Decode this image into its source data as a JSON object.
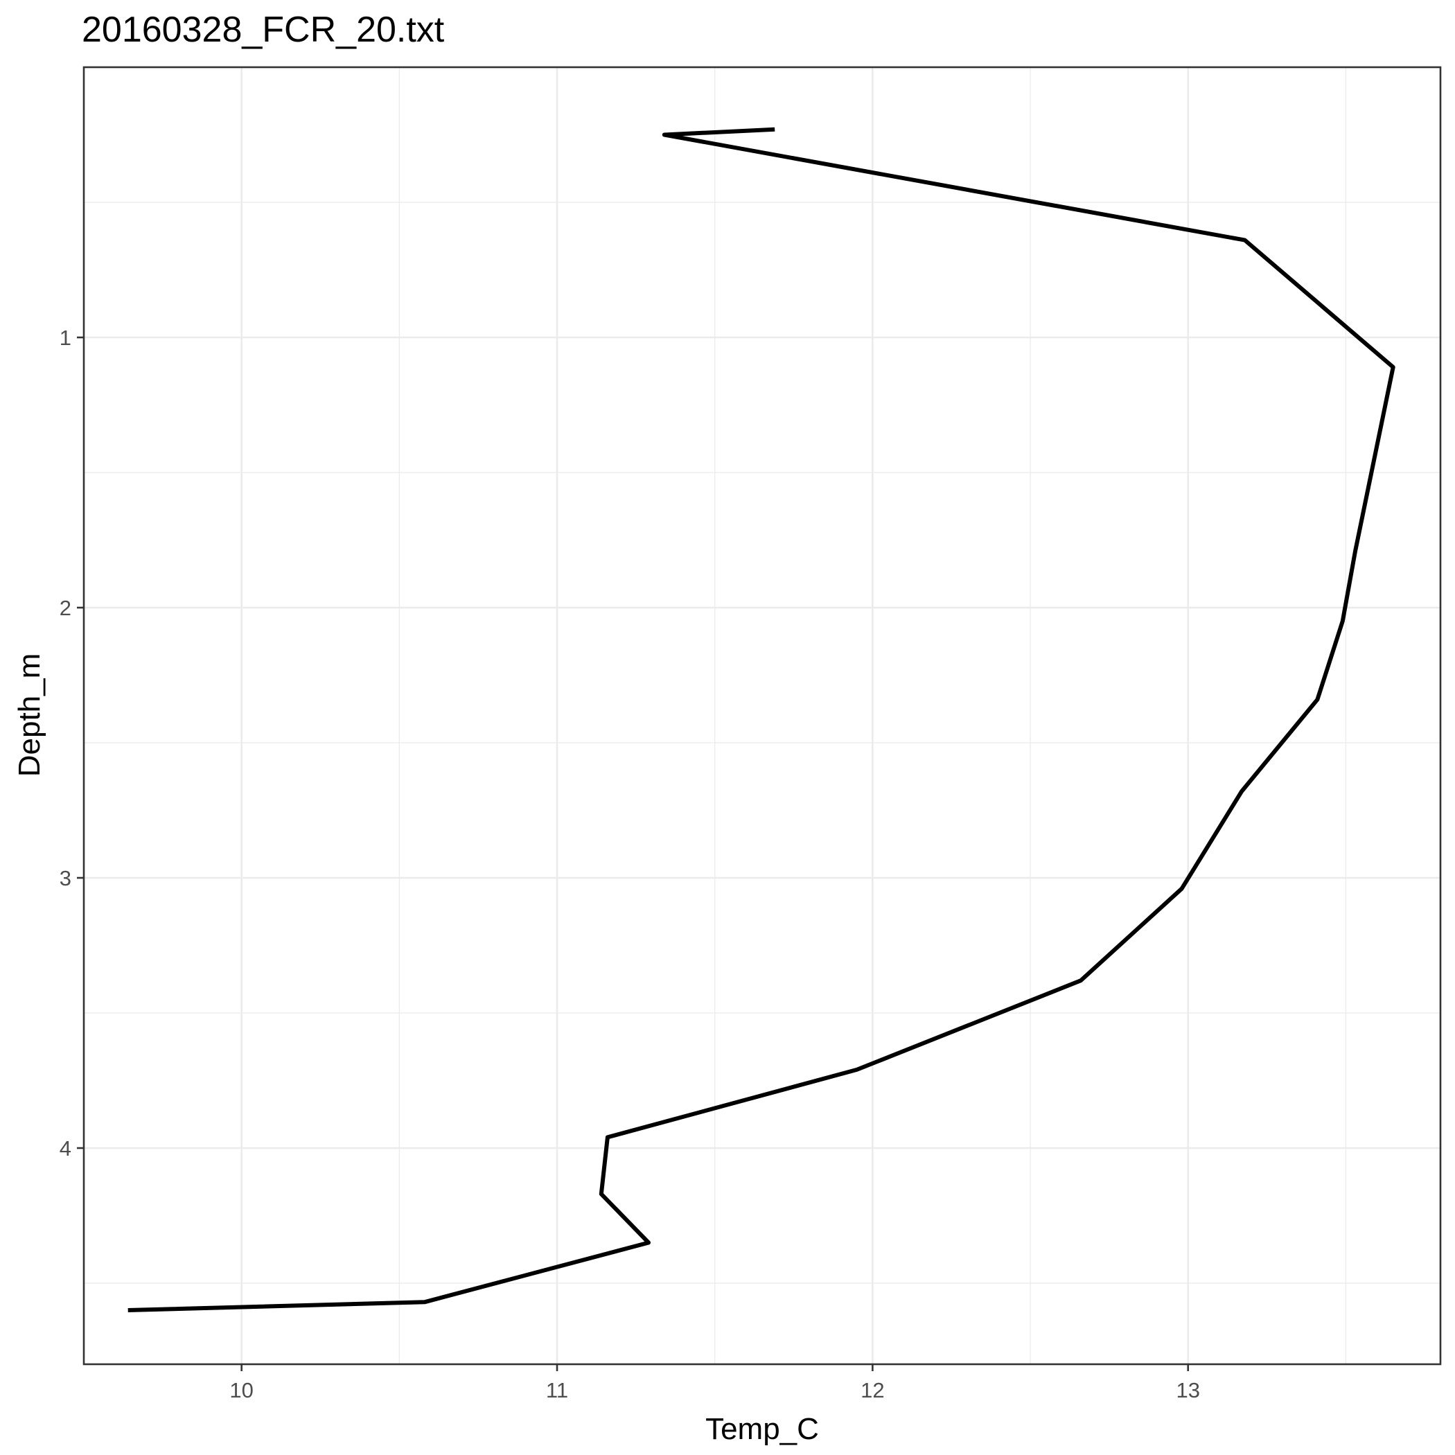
{
  "chart_data": {
    "type": "line",
    "title": "20160328_FCR_20.txt",
    "xlabel": "Temp_C",
    "ylabel": "Depth_m",
    "xlim": [
      9.5,
      13.8
    ],
    "ylim": [
      0.0,
      4.8
    ],
    "y_reversed": true,
    "grid": true,
    "legend": "none",
    "line_color": "#000000",
    "x_ticks": [
      10,
      11,
      12,
      13
    ],
    "x_tick_labels": [
      "10",
      "11",
      "12",
      "13"
    ],
    "y_ticks": [
      1,
      2,
      3,
      4
    ],
    "y_tick_labels": [
      "1",
      "2",
      "3",
      "4"
    ],
    "series": [
      {
        "x": [
          11.69,
          11.34,
          13.18,
          13.65,
          13.59,
          13.53,
          13.49,
          13.41,
          13.17,
          12.98,
          12.66,
          11.95,
          11.16,
          11.14,
          11.29,
          10.58,
          9.64
        ],
        "y": [
          0.23,
          0.25,
          0.64,
          1.11,
          1.45,
          1.79,
          2.05,
          2.34,
          2.68,
          3.04,
          3.38,
          3.71,
          3.96,
          4.17,
          4.35,
          4.57,
          4.6
        ]
      }
    ]
  }
}
